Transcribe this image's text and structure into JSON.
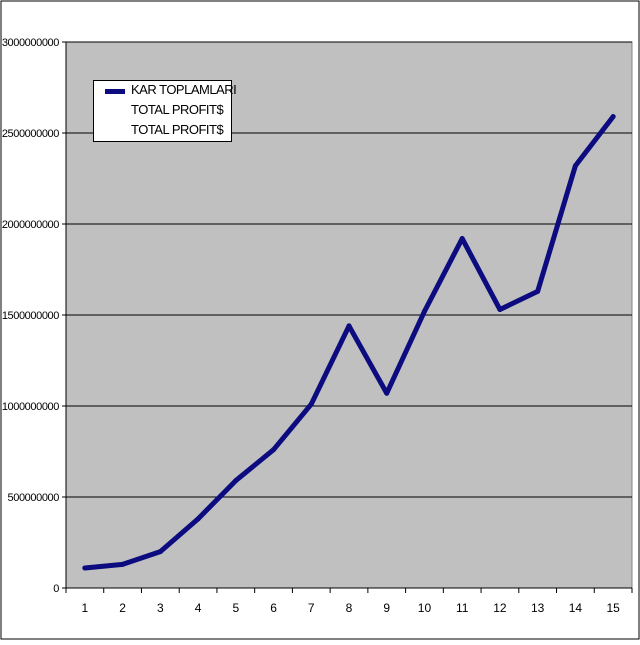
{
  "chart_data": {
    "type": "line",
    "categories": [
      "1",
      "2",
      "3",
      "4",
      "5",
      "6",
      "7",
      "8",
      "9",
      "10",
      "11",
      "12",
      "13",
      "14",
      "15"
    ],
    "series": [
      {
        "name": "KAR TOPLAMLARI",
        "values": [
          110000000,
          130000000,
          200000000,
          380000000,
          590000000,
          760000000,
          1010000000,
          1440000000,
          1070000000,
          1520000000,
          1920000000,
          1530000000,
          1630000000,
          2320000000,
          2590000000
        ]
      }
    ],
    "ylim": [
      0,
      3000000000
    ],
    "yticks": [
      "0",
      "500000000",
      "1000000000",
      "1500000000",
      "2000000000",
      "2500000000",
      "3000000000"
    ],
    "grid": true,
    "legend_position": "top-left",
    "legend_entries": [
      "KAR TOPLAMLARI",
      "TOTAL PROFIT$",
      "TOTAL PROFIT$"
    ],
    "colors": {
      "line": "#0c0c80",
      "plot_background": "#c0c0c0",
      "gridline": "#000000"
    }
  }
}
